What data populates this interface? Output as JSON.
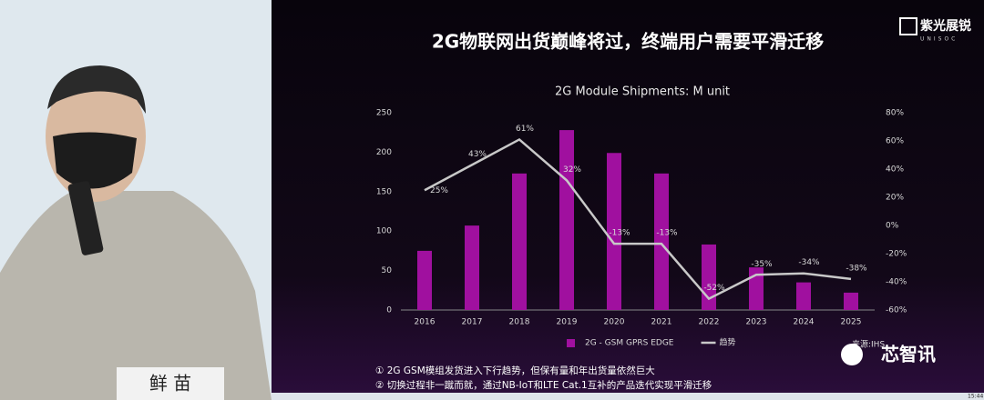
{
  "slide_title": "2G物联网出货巅峰将过，终端用户需要平滑迁移",
  "logo": {
    "name": "紫光展锐",
    "sub": "UNISOC"
  },
  "speaker_name": "鲜 苗",
  "notes": [
    "① 2G GSM模组发货进入下行趋势，但保有量和年出货量依然巨大",
    "② 切换过程非一蹴而就，通过NB-IoT和LTE Cat.1互补的产品迭代实现平滑迁移"
  ],
  "source": "来源:IHS",
  "watermark": "芯智讯",
  "clock": "15:44",
  "chart_data": {
    "type": "bar",
    "title": "2G Module Shipments: M unit",
    "categories": [
      "2016",
      "2017",
      "2018",
      "2019",
      "2020",
      "2021",
      "2022",
      "2023",
      "2024",
      "2025"
    ],
    "series": [
      {
        "name": "2G - GSM GPRS EDGE",
        "color": "#a0109f",
        "values": [
          75,
          107,
          173,
          228,
          199,
          173,
          83,
          54,
          35,
          22
        ]
      },
      {
        "name": "趋势",
        "type": "line",
        "axis": "y2",
        "color": "#c8c8c8",
        "values": [
          25,
          43,
          61,
          32,
          -13,
          -13,
          -52,
          -35,
          -34,
          -38
        ],
        "value_labels": [
          "25%",
          "43%",
          "61%",
          "32%",
          "-13%",
          "-13%",
          "-52%",
          "-35%",
          "-34%",
          "-38%"
        ]
      }
    ],
    "ylim": [
      0,
      250
    ],
    "yticks": [
      0,
      50,
      100,
      150,
      200,
      250
    ],
    "y2lim": [
      -60,
      80
    ],
    "y2ticks": [
      {
        "value": -60,
        "label": "-60%"
      },
      {
        "value": -40,
        "label": "-40%"
      },
      {
        "value": -20,
        "label": "-20%"
      },
      {
        "value": 0,
        "label": "0%"
      },
      {
        "value": 20,
        "label": "20%"
      },
      {
        "value": 40,
        "label": "40%"
      },
      {
        "value": 60,
        "label": "60%"
      },
      {
        "value": 80,
        "label": "80%"
      }
    ],
    "legend": "bottom"
  }
}
